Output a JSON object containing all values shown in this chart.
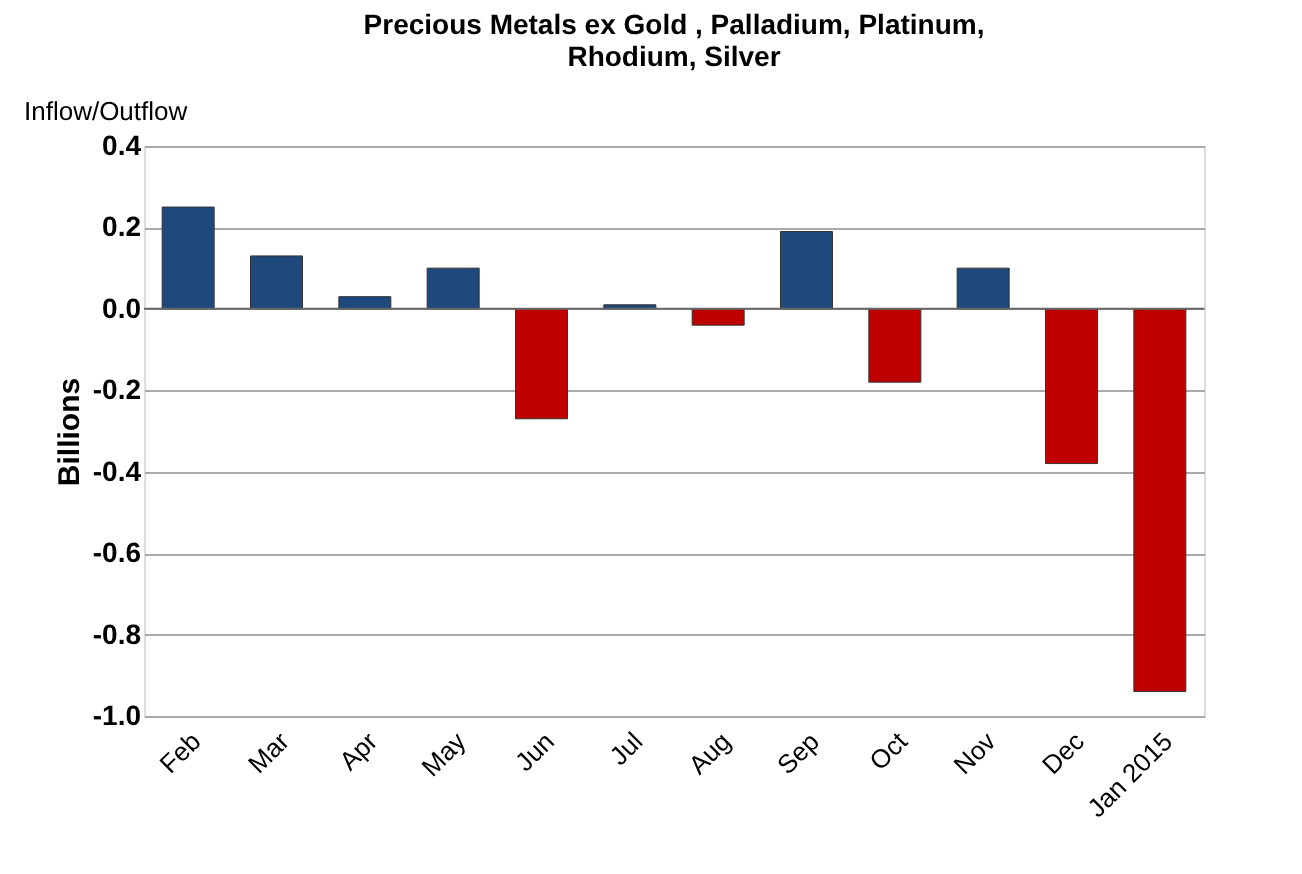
{
  "chart_data": {
    "type": "bar",
    "title": "Precious Metals ex Gold , Palladium, Platinum,\nRhodium, Silver",
    "subtitle": "Inflow/Outflow",
    "ylabel": "Billions",
    "categories": [
      "Feb",
      "Mar",
      "Apr",
      "May",
      "Jun",
      "Jul",
      "Aug",
      "Sep",
      "Oct",
      "Nov",
      "Dec",
      "Jan 2015"
    ],
    "values": [
      0.25,
      0.13,
      0.03,
      0.1,
      -0.27,
      0.01,
      -0.04,
      0.19,
      -0.18,
      0.1,
      -0.38,
      -0.94
    ],
    "colors": [
      "#1f497d",
      "#1f497d",
      "#1f497d",
      "#1f497d",
      "#c00000",
      "#1f497d",
      "#c00000",
      "#1f497d",
      "#c00000",
      "#1f497d",
      "#c00000",
      "#c00000"
    ],
    "ylim": [
      -1.0,
      0.4
    ],
    "yticks": [
      {
        "value": -1.0,
        "label": "-1.0"
      },
      {
        "value": -0.8,
        "label": "-0.8"
      },
      {
        "value": -0.6,
        "label": "-0.6"
      },
      {
        "value": -0.4,
        "label": "-0.4"
      },
      {
        "value": -0.2,
        "label": "-0.2"
      },
      {
        "value": 0,
        "label": "0.0"
      },
      {
        "value": 0.2,
        "label": "0.2"
      },
      {
        "value": 0.4,
        "label": "0.4"
      }
    ],
    "grid": "y"
  }
}
